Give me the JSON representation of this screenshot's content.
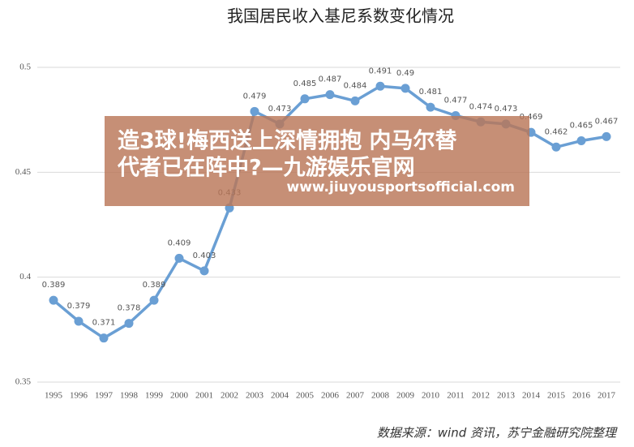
{
  "chart_data": {
    "type": "line",
    "title": "我国居民收入基尼系数变化情况",
    "categories": [
      "1995",
      "1996",
      "1997",
      "1998",
      "1999",
      "2000",
      "2001",
      "2002",
      "2003",
      "2004",
      "2005",
      "2006",
      "2007",
      "2008",
      "2009",
      "2010",
      "2011",
      "2012",
      "2013",
      "2014",
      "2015",
      "2016",
      "2017"
    ],
    "series": [
      {
        "color": "#6a9fd4",
        "values": [
          0.389,
          0.379,
          0.371,
          0.378,
          0.389,
          0.409,
          0.403,
          0.433,
          0.479,
          0.473,
          0.485,
          0.487,
          0.484,
          0.491,
          0.49,
          0.481,
          0.477,
          0.474,
          0.473,
          0.469,
          0.462,
          0.465,
          0.467
        ]
      }
    ],
    "ylim": [
      0.35,
      0.5
    ],
    "yticks": [
      0.35,
      0.4,
      0.45,
      0.5
    ],
    "grid": true,
    "source": "数据来源：wind 资讯，苏宁金融研究院整理"
  },
  "overlay": {
    "lines": [
      "造3球!梅西送上深情拥抱 内马尔替",
      "代者已在阵中?—九游娱乐官网"
    ],
    "url": "www.jiuyousportsofficial.com"
  }
}
